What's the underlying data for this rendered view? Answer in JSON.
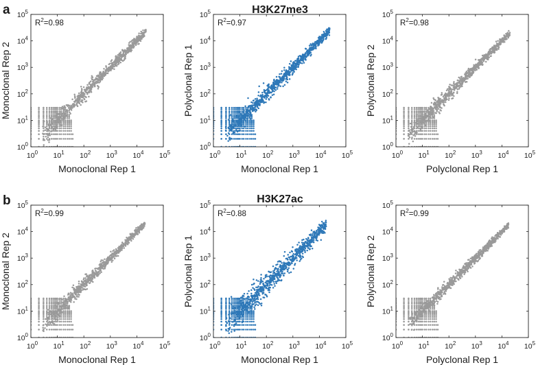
{
  "figure": {
    "panels": [
      {
        "label": "a",
        "title": "H3K27me3"
      },
      {
        "label": "b",
        "title": "H3K27ac"
      }
    ]
  },
  "colors": {
    "gray": "#9a9a9a",
    "blue": "#2e78b8",
    "frame": "#222222",
    "text": "#1a1a1a"
  },
  "chart_data": [
    {
      "type": "scatter",
      "row": 0,
      "col": 0,
      "series_color": "gray",
      "xlabel": "Monoclonal Rep 1",
      "ylabel": "Monoclonal Rep 2",
      "r2_label": "R",
      "r2_sup": "2",
      "r2_value": "=0.98",
      "xscale": "log",
      "yscale": "log",
      "xlim": [
        1,
        100000
      ],
      "ylim": [
        1,
        100000
      ],
      "x_ticks": [
        {
          "base": "10",
          "exp": "0"
        },
        {
          "base": "10",
          "exp": "1"
        },
        {
          "base": "10",
          "exp": "2"
        },
        {
          "base": "10",
          "exp": "3"
        },
        {
          "base": "10",
          "exp": "4"
        },
        {
          "base": "10",
          "exp": "5"
        }
      ],
      "y_ticks": [
        {
          "base": "10",
          "exp": "0"
        },
        {
          "base": "10",
          "exp": "1"
        },
        {
          "base": "10",
          "exp": "2"
        },
        {
          "base": "10",
          "exp": "3"
        },
        {
          "base": "10",
          "exp": "4"
        },
        {
          "base": "10",
          "exp": "5"
        }
      ],
      "max_value": 22000,
      "strip_x_max": 40,
      "strip_y_max": 35,
      "spread_decades": 0.35
    },
    {
      "type": "scatter",
      "row": 0,
      "col": 1,
      "series_color": "blue",
      "xlabel": "Monoclonal Rep 1",
      "ylabel": "Polyclonal Rep 1",
      "r2_label": "R",
      "r2_sup": "2",
      "r2_value": "=0.97",
      "xscale": "log",
      "yscale": "log",
      "xlim": [
        1,
        100000
      ],
      "ylim": [
        1,
        100000
      ],
      "x_ticks": [
        {
          "base": "10",
          "exp": "0"
        },
        {
          "base": "10",
          "exp": "1"
        },
        {
          "base": "10",
          "exp": "2"
        },
        {
          "base": "10",
          "exp": "3"
        },
        {
          "base": "10",
          "exp": "4"
        },
        {
          "base": "10",
          "exp": "5"
        }
      ],
      "y_ticks": [
        {
          "base": "10",
          "exp": "0"
        },
        {
          "base": "10",
          "exp": "1"
        },
        {
          "base": "10",
          "exp": "2"
        },
        {
          "base": "10",
          "exp": "3"
        },
        {
          "base": "10",
          "exp": "4"
        },
        {
          "base": "10",
          "exp": "5"
        }
      ],
      "max_value": 25000,
      "strip_x_max": 40,
      "strip_y_max": 45,
      "spread_decades": 0.4
    },
    {
      "type": "scatter",
      "row": 0,
      "col": 2,
      "series_color": "gray",
      "xlabel": "Polyclonal Rep 1",
      "ylabel": "Polyclonal Rep 2",
      "r2_label": "R",
      "r2_sup": "2",
      "r2_value": "=0.98",
      "xscale": "log",
      "yscale": "log",
      "xlim": [
        1,
        100000
      ],
      "ylim": [
        1,
        100000
      ],
      "x_ticks": [
        {
          "base": "10",
          "exp": "0"
        },
        {
          "base": "10",
          "exp": "1"
        },
        {
          "base": "10",
          "exp": "2"
        },
        {
          "base": "10",
          "exp": "3"
        },
        {
          "base": "10",
          "exp": "4"
        },
        {
          "base": "10",
          "exp": "5"
        }
      ],
      "y_ticks": [
        {
          "base": "10",
          "exp": "0"
        },
        {
          "base": "10",
          "exp": "1"
        },
        {
          "base": "10",
          "exp": "2"
        },
        {
          "base": "10",
          "exp": "3"
        },
        {
          "base": "10",
          "exp": "4"
        },
        {
          "base": "10",
          "exp": "5"
        }
      ],
      "max_value": 20000,
      "strip_x_max": 40,
      "strip_y_max": 40,
      "spread_decades": 0.33
    },
    {
      "type": "scatter",
      "row": 1,
      "col": 0,
      "series_color": "gray",
      "xlabel": "Monoclonal Rep 1",
      "ylabel": "Monoclonal Rep 2",
      "r2_label": "R",
      "r2_sup": "2",
      "r2_value": "=0.99",
      "xscale": "log",
      "yscale": "log",
      "xlim": [
        1,
        100000
      ],
      "ylim": [
        1,
        100000
      ],
      "x_ticks": [
        {
          "base": "10",
          "exp": "0"
        },
        {
          "base": "10",
          "exp": "1"
        },
        {
          "base": "10",
          "exp": "2"
        },
        {
          "base": "10",
          "exp": "3"
        },
        {
          "base": "10",
          "exp": "4"
        },
        {
          "base": "10",
          "exp": "5"
        }
      ],
      "y_ticks": [
        {
          "base": "10",
          "exp": "0"
        },
        {
          "base": "10",
          "exp": "1"
        },
        {
          "base": "10",
          "exp": "2"
        },
        {
          "base": "10",
          "exp": "3"
        },
        {
          "base": "10",
          "exp": "4"
        },
        {
          "base": "10",
          "exp": "5"
        }
      ],
      "max_value": 20000,
      "strip_x_max": 40,
      "strip_y_max": 35,
      "spread_decades": 0.3
    },
    {
      "type": "scatter",
      "row": 1,
      "col": 1,
      "series_color": "blue",
      "xlabel": "Monoclonal Rep 1",
      "ylabel": "Polyclonal Rep 1",
      "r2_label": "R",
      "r2_sup": "2",
      "r2_value": "=0.88",
      "xscale": "log",
      "yscale": "log",
      "xlim": [
        1,
        100000
      ],
      "ylim": [
        1,
        100000
      ],
      "x_ticks": [
        {
          "base": "10",
          "exp": "0"
        },
        {
          "base": "10",
          "exp": "1"
        },
        {
          "base": "10",
          "exp": "2"
        },
        {
          "base": "10",
          "exp": "3"
        },
        {
          "base": "10",
          "exp": "4"
        },
        {
          "base": "10",
          "exp": "5"
        }
      ],
      "y_ticks": [
        {
          "base": "10",
          "exp": "0"
        },
        {
          "base": "10",
          "exp": "1"
        },
        {
          "base": "10",
          "exp": "2"
        },
        {
          "base": "10",
          "exp": "3"
        },
        {
          "base": "10",
          "exp": "4"
        },
        {
          "base": "10",
          "exp": "5"
        }
      ],
      "max_value": 18000,
      "strip_x_max": 40,
      "strip_y_max": 45,
      "spread_decades": 0.6
    },
    {
      "type": "scatter",
      "row": 1,
      "col": 2,
      "series_color": "gray",
      "xlabel": "Polyclonal Rep 1",
      "ylabel": "Polyclonal Rep 2",
      "r2_label": "R",
      "r2_sup": "2",
      "r2_value": "=0.99",
      "xscale": "log",
      "yscale": "log",
      "xlim": [
        1,
        100000
      ],
      "ylim": [
        1,
        100000
      ],
      "x_ticks": [
        {
          "base": "10",
          "exp": "0"
        },
        {
          "base": "10",
          "exp": "1"
        },
        {
          "base": "10",
          "exp": "2"
        },
        {
          "base": "10",
          "exp": "3"
        },
        {
          "base": "10",
          "exp": "4"
        },
        {
          "base": "10",
          "exp": "5"
        }
      ],
      "y_ticks": [
        {
          "base": "10",
          "exp": "0"
        },
        {
          "base": "10",
          "exp": "1"
        },
        {
          "base": "10",
          "exp": "2"
        },
        {
          "base": "10",
          "exp": "3"
        },
        {
          "base": "10",
          "exp": "4"
        },
        {
          "base": "10",
          "exp": "5"
        }
      ],
      "max_value": 18000,
      "strip_x_max": 40,
      "strip_y_max": 40,
      "spread_decades": 0.28
    }
  ]
}
